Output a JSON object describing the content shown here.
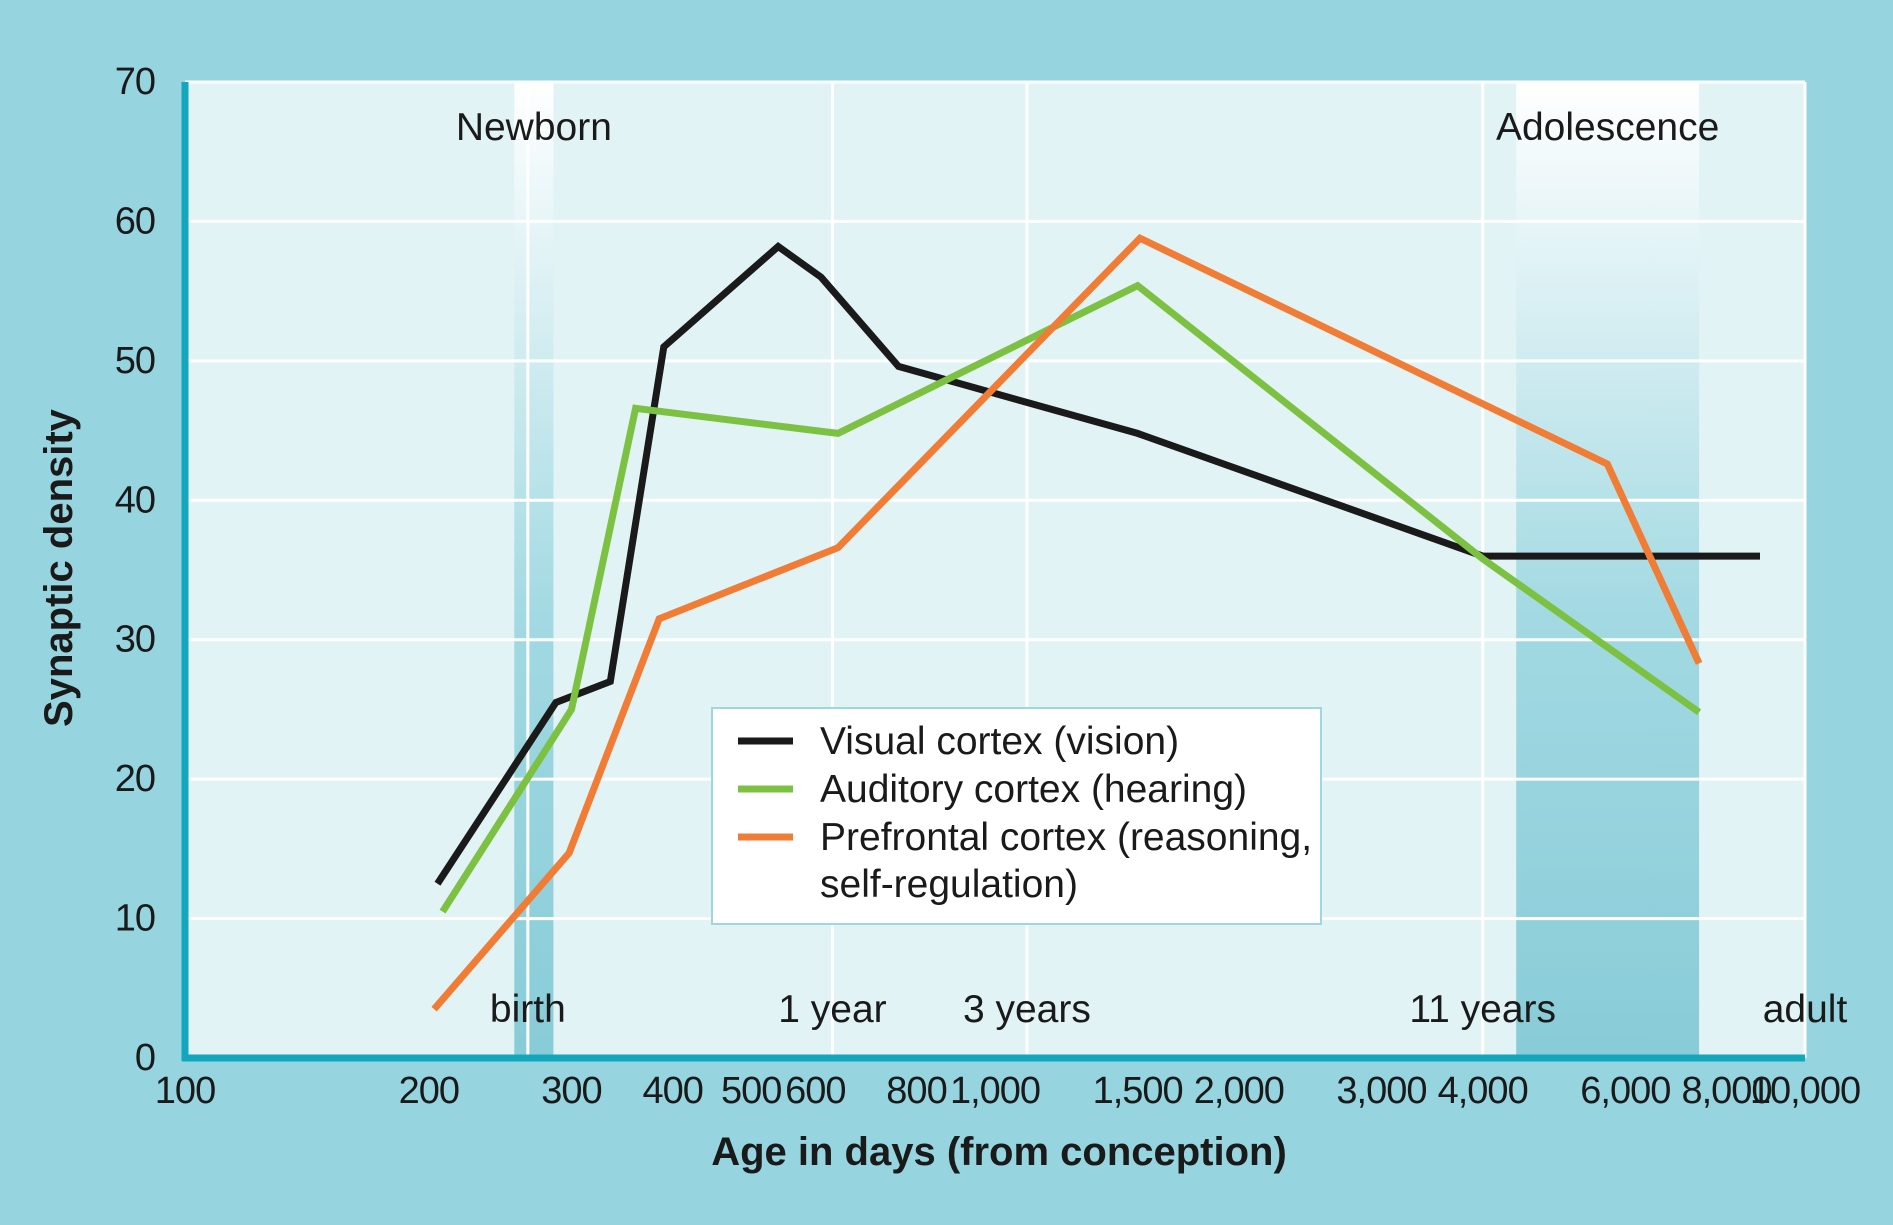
{
  "chart_data": {
    "type": "line",
    "xlabel": "Age in days (from conception)",
    "ylabel": "Synaptic density",
    "x_scale": "log",
    "xlim": [
      100,
      10000
    ],
    "ylim": [
      0,
      70
    ],
    "grid": true,
    "x_ticks": [
      {
        "value": 100,
        "label": "100"
      },
      {
        "value": 200,
        "label": "200"
      },
      {
        "value": 300,
        "label": "300"
      },
      {
        "value": 400,
        "label": "400"
      },
      {
        "value": 500,
        "label": "500"
      },
      {
        "value": 600,
        "label": "600"
      },
      {
        "value": 800,
        "label": "800"
      },
      {
        "value": 1000,
        "label": "1,000"
      },
      {
        "value": 1500,
        "label": "1,500"
      },
      {
        "value": 2000,
        "label": "2,000"
      },
      {
        "value": 3000,
        "label": "3,000"
      },
      {
        "value": 4000,
        "label": "4,000"
      },
      {
        "value": 6000,
        "label": "6,000"
      },
      {
        "value": 8000,
        "label": "8,000"
      },
      {
        "value": 10000,
        "label": "10,000"
      }
    ],
    "y_ticks": [
      0,
      10,
      20,
      30,
      40,
      50,
      60,
      70
    ],
    "bands": [
      {
        "label": "Newborn",
        "from": 255,
        "to": 285,
        "fade": "up"
      },
      {
        "label": "Adolescence",
        "from": 4400,
        "to": 7400,
        "fade": "up"
      }
    ],
    "milestones": [
      {
        "label": "birth",
        "x": 265
      },
      {
        "label": "1 year",
        "x": 630
      },
      {
        "label": "3 years",
        "x": 1095
      },
      {
        "label": "11 years",
        "x": 4000
      },
      {
        "label": "adult",
        "x": 10000
      }
    ],
    "series": [
      {
        "name": "Visual cortex (vision)",
        "color": "#1a1a1a",
        "points": [
          [
            205,
            12.5
          ],
          [
            287,
            25.5
          ],
          [
            335,
            27
          ],
          [
            390,
            51
          ],
          [
            540,
            58.2
          ],
          [
            610,
            56
          ],
          [
            760,
            49.6
          ],
          [
            1500,
            44.8
          ],
          [
            4000,
            36
          ],
          [
            8800,
            36
          ]
        ]
      },
      {
        "name": "Auditory cortex (hearing)",
        "color": "#7dc142",
        "points": [
          [
            208,
            10.5
          ],
          [
            300,
            25
          ],
          [
            360,
            46.6
          ],
          [
            640,
            44.8
          ],
          [
            1500,
            55.4
          ],
          [
            4000,
            35.8
          ],
          [
            7400,
            24.8
          ]
        ]
      },
      {
        "name": "Prefrontal cortex (reasoning, self-regulation)",
        "color": "#f17c35",
        "points": [
          [
            203,
            3.5
          ],
          [
            298,
            14.7
          ],
          [
            385,
            31.5
          ],
          [
            640,
            36.6
          ],
          [
            1510,
            58.8
          ],
          [
            5700,
            42.6
          ],
          [
            7400,
            28.3
          ]
        ]
      }
    ],
    "legend": {
      "position": "center-bottom",
      "entries": [
        {
          "lines": [
            "Visual cortex (vision)"
          ],
          "color": "#1a1a1a"
        },
        {
          "lines": [
            "Auditory cortex (hearing)"
          ],
          "color": "#7dc142"
        },
        {
          "lines": [
            "Prefrontal cortex (reasoning,",
            "self-regulation)"
          ],
          "color": "#f17c35"
        }
      ]
    }
  }
}
